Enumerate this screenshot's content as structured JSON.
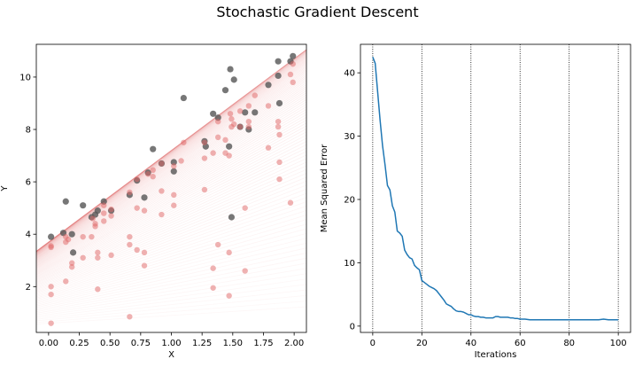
{
  "figure": {
    "suptitle": "Stochastic Gradient Descent"
  },
  "chart_data": [
    {
      "type": "scatter",
      "title": "",
      "xlabel": "X",
      "ylabel": "Y",
      "xlim": [
        -0.1,
        2.1
      ],
      "ylim": [
        0.25,
        11.25
      ],
      "xticks": [
        "0.00",
        "0.25",
        "0.50",
        "0.75",
        "1.00",
        "1.25",
        "1.50",
        "1.75",
        "2.00"
      ],
      "yticks": [
        "2",
        "4",
        "6",
        "8",
        "10"
      ],
      "grid": false,
      "colors": {
        "points": "#555555",
        "fits": "#e06666",
        "pred_points": "#e06666"
      },
      "series": [
        {
          "role": "observed",
          "x": [
            0.02,
            0.12,
            0.14,
            0.19,
            0.2,
            0.28,
            0.35,
            0.38,
            0.4,
            0.45,
            0.51,
            0.66,
            0.72,
            0.78,
            0.81,
            0.85,
            0.92,
            1.02,
            1.02,
            1.1,
            1.27,
            1.28,
            1.34,
            1.38,
            1.44,
            1.47,
            1.48,
            1.49,
            1.51,
            1.56,
            1.6,
            1.63,
            1.68,
            1.79,
            1.87,
            1.87,
            1.88,
            1.97,
            1.99
          ],
          "y": [
            3.9,
            4.05,
            5.25,
            4.0,
            3.3,
            5.1,
            4.65,
            4.75,
            4.9,
            5.25,
            4.9,
            5.5,
            6.05,
            5.4,
            6.35,
            7.25,
            6.7,
            6.4,
            6.75,
            9.2,
            7.55,
            7.35,
            8.6,
            8.45,
            9.5,
            7.35,
            10.3,
            4.65,
            9.9,
            8.1,
            8.65,
            8.0,
            8.65,
            9.7,
            10.6,
            10.05,
            9.0,
            10.6,
            10.8
          ]
        },
        {
          "role": "predicted",
          "x": [
            0.02,
            0.02,
            0.02,
            0.02,
            0.02,
            0.14,
            0.14,
            0.14,
            0.16,
            0.19,
            0.19,
            0.28,
            0.28,
            0.35,
            0.36,
            0.38,
            0.38,
            0.4,
            0.4,
            0.4,
            0.45,
            0.45,
            0.45,
            0.51,
            0.51,
            0.51,
            0.66,
            0.66,
            0.66,
            0.66,
            0.72,
            0.72,
            0.72,
            0.78,
            0.78,
            0.78,
            0.81,
            0.85,
            0.85,
            0.92,
            0.92,
            0.92,
            1.02,
            1.02,
            1.02,
            1.08,
            1.1,
            1.27,
            1.27,
            1.27,
            1.34,
            1.34,
            1.34,
            1.38,
            1.38,
            1.38,
            1.44,
            1.44,
            1.47,
            1.47,
            1.47,
            1.48,
            1.49,
            1.49,
            1.51,
            1.56,
            1.56,
            1.6,
            1.6,
            1.63,
            1.63,
            1.63,
            1.68,
            1.79,
            1.79,
            1.87,
            1.87,
            1.88,
            1.88,
            1.88,
            1.97,
            1.97,
            1.99,
            1.99
          ],
          "y": [
            0.6,
            1.7,
            2.0,
            3.5,
            3.55,
            2.2,
            3.7,
            3.9,
            3.8,
            2.75,
            2.9,
            3.1,
            3.9,
            3.9,
            4.6,
            4.3,
            4.4,
            3.1,
            3.3,
            1.9,
            4.5,
            4.8,
            5.1,
            3.2,
            4.7,
            4.95,
            0.85,
            3.6,
            3.9,
            5.6,
            3.4,
            5.0,
            6.1,
            3.3,
            2.8,
            4.9,
            6.3,
            6.2,
            6.45,
            4.75,
            5.65,
            6.7,
            5.1,
            5.5,
            6.6,
            6.8,
            7.5,
            5.7,
            6.9,
            7.5,
            1.95,
            2.7,
            7.1,
            3.6,
            7.7,
            8.3,
            7.1,
            7.6,
            1.65,
            3.3,
            7.0,
            8.6,
            8.1,
            8.4,
            8.2,
            8.1,
            8.7,
            5.0,
            2.6,
            8.1,
            8.3,
            8.9,
            9.3,
            7.3,
            8.9,
            8.1,
            8.3,
            6.1,
            6.75,
            7.8,
            5.2,
            10.1,
            9.8,
            10.5
          ]
        }
      ]
    },
    {
      "type": "line",
      "title": "",
      "xlabel": "Iterations",
      "ylabel": "Mean Squared Error",
      "xlim": [
        -5,
        105
      ],
      "ylim": [
        -1,
        44.5
      ],
      "xticks": [
        "0",
        "20",
        "40",
        "60",
        "80",
        "100"
      ],
      "yticks": [
        "0",
        "10",
        "20",
        "30",
        "40"
      ],
      "grid": "vertical dotted",
      "colors": {
        "line": "#1f77b4"
      },
      "series": [
        {
          "role": "mse",
          "x": [
            0,
            1,
            2,
            3,
            4,
            5,
            6,
            7,
            8,
            9,
            10,
            11,
            12,
            13,
            14,
            15,
            16,
            17,
            18,
            19,
            20,
            21,
            22,
            23,
            24,
            25,
            26,
            27,
            28,
            29,
            30,
            31,
            32,
            33,
            34,
            35,
            36,
            37,
            38,
            39,
            40,
            41,
            42,
            43,
            44,
            45,
            46,
            47,
            48,
            49,
            50,
            51,
            52,
            53,
            54,
            55,
            56,
            57,
            58,
            59,
            60,
            62,
            64,
            66,
            68,
            70,
            72,
            74,
            76,
            78,
            80,
            82,
            84,
            86,
            88,
            90,
            92,
            94,
            96,
            98,
            100
          ],
          "y": [
            42.5,
            41.5,
            37.0,
            32.5,
            28.5,
            25.5,
            22.2,
            21.5,
            19.0,
            18.0,
            15.0,
            14.7,
            14.2,
            12.0,
            11.3,
            10.8,
            10.6,
            9.6,
            9.2,
            8.9,
            7.2,
            6.9,
            6.6,
            6.3,
            6.1,
            5.9,
            5.6,
            5.1,
            4.6,
            4.1,
            3.5,
            3.3,
            3.1,
            2.7,
            2.4,
            2.3,
            2.3,
            2.2,
            2.0,
            1.8,
            1.8,
            1.6,
            1.5,
            1.5,
            1.4,
            1.4,
            1.3,
            1.3,
            1.3,
            1.3,
            1.5,
            1.5,
            1.4,
            1.4,
            1.4,
            1.4,
            1.3,
            1.3,
            1.2,
            1.2,
            1.1,
            1.1,
            1.0,
            1.0,
            1.0,
            1.0,
            1.0,
            1.0,
            1.0,
            1.0,
            1.0,
            1.0,
            1.0,
            1.0,
            1.0,
            1.0,
            1.0,
            1.1,
            1.0,
            1.0,
            1.0
          ]
        }
      ]
    }
  ]
}
